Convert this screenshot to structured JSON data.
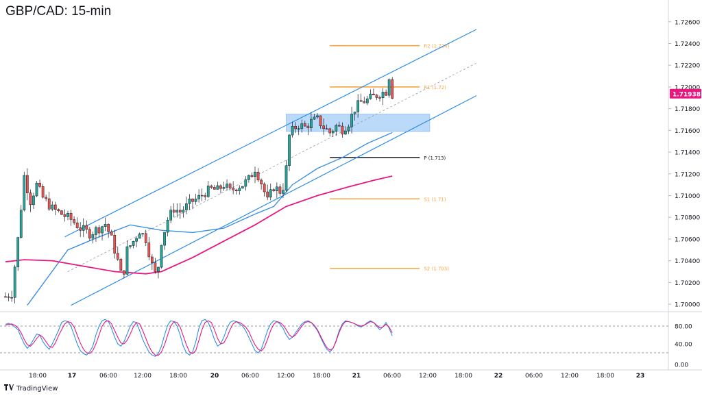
{
  "title": "GBP/CAD: 15-min",
  "footer": {
    "brand": "TradingView",
    "logo_icon": "tradingview-logo-icon"
  },
  "colors": {
    "channel": "#2f8ee6",
    "ma_fast": "#3d8fe0",
    "ma_slow": "#e8177f",
    "pivot_res": "#f7a540",
    "pivot_p": "#131722",
    "candle_up": "#26a69a",
    "candle_down": "#ef5350",
    "zone": "#9ec9f5",
    "price_badge": "#e8177f",
    "stoch_k": "#2f8ee6",
    "stoch_d": "#e8177f"
  },
  "chart_data": [
    {
      "type": "candlestick",
      "symbol": "GBP/CAD",
      "timeframe": "15-min",
      "x_ticks": [
        "18:00",
        "17",
        "06:00",
        "12:00",
        "18:00",
        "20",
        "06:00",
        "12:00",
        "18:00",
        "21",
        "06:00",
        "12:00",
        "18:00",
        "22",
        "06:00",
        "12:00",
        "18:00",
        "23"
      ],
      "y_ticks": [
        "1.72600",
        "1.72400",
        "1.72200",
        "1.72000",
        "1.71800",
        "1.71600",
        "1.71400",
        "1.71200",
        "1.71000",
        "1.70800",
        "1.70600",
        "1.70400",
        "1.70200",
        "1.70000"
      ],
      "ylim": [
        1.6995,
        1.7275
      ],
      "last_price": "1.71938",
      "price_path": [
        [
          0,
          1.7007
        ],
        [
          2,
          1.701
        ],
        [
          4,
          1.706
        ],
        [
          6,
          1.7118
        ],
        [
          8,
          1.7095
        ],
        [
          10,
          1.711
        ],
        [
          12,
          1.7098
        ],
        [
          15,
          1.7088
        ],
        [
          18,
          1.7083
        ],
        [
          21,
          1.7078
        ],
        [
          24,
          1.707
        ],
        [
          27,
          1.7065
        ],
        [
          30,
          1.707
        ],
        [
          32,
          1.7074
        ],
        [
          34,
          1.706
        ],
        [
          36,
          1.704
        ],
        [
          37.5,
          1.7022
        ],
        [
          39,
          1.705
        ],
        [
          41,
          1.7058
        ],
        [
          43,
          1.7068
        ],
        [
          45,
          1.706
        ],
        [
          47,
          1.7036
        ],
        [
          48.5,
          1.7024
        ],
        [
          50,
          1.7058
        ],
        [
          52,
          1.7078
        ],
        [
          54,
          1.7088
        ],
        [
          56,
          1.7085
        ],
        [
          58,
          1.709
        ],
        [
          60,
          1.7095
        ],
        [
          62,
          1.7098
        ],
        [
          64,
          1.7103
        ],
        [
          66,
          1.7106
        ],
        [
          68,
          1.7105
        ],
        [
          70,
          1.711
        ],
        [
          72,
          1.7104
        ],
        [
          74,
          1.7108
        ],
        [
          76,
          1.711
        ],
        [
          78,
          1.7115
        ],
        [
          80,
          1.7125
        ],
        [
          82,
          1.7112
        ],
        [
          84,
          1.7095
        ],
        [
          86,
          1.7108
        ],
        [
          88,
          1.7104
        ],
        [
          89.5,
          1.711
        ],
        [
          91,
          1.7155
        ],
        [
          92.5,
          1.7162
        ],
        [
          94,
          1.7165
        ],
        [
          96,
          1.7163
        ],
        [
          98,
          1.7168
        ],
        [
          100,
          1.717
        ],
        [
          102,
          1.7163
        ],
        [
          104,
          1.7158
        ],
        [
          106,
          1.7164
        ],
        [
          108,
          1.7161
        ],
        [
          110,
          1.7167
        ],
        [
          112,
          1.718
        ],
        [
          114,
          1.7186
        ],
        [
          116,
          1.7188
        ],
        [
          118,
          1.7191
        ],
        [
          120,
          1.7194
        ],
        [
          122,
          1.7196
        ],
        [
          123,
          1.721
        ],
        [
          124,
          1.7193
        ]
      ]
    },
    {
      "type": "line",
      "name": "",
      "series": [
        {
          "name": "",
          "role": "ma_fast",
          "points": [
            [
              7,
              1.6999
            ],
            [
              20,
              1.705
            ],
            [
              30,
              1.7062
            ],
            [
              40,
              1.7073
            ],
            [
              50,
              1.7068
            ],
            [
              60,
              1.7066
            ],
            [
              70,
              1.707
            ],
            [
              80,
              1.7083
            ],
            [
              86,
              1.709
            ],
            [
              92,
              1.711
            ],
            [
              100,
              1.7125
            ],
            [
              108,
              1.7135
            ],
            [
              116,
              1.7148
            ],
            [
              124,
              1.7158
            ]
          ]
        },
        {
          "name": "",
          "role": "ma_slow",
          "points": [
            [
              0,
              1.7039
            ],
            [
              6,
              1.7041
            ],
            [
              15,
              1.704
            ],
            [
              25,
              1.7035
            ],
            [
              35,
              1.703
            ],
            [
              45,
              1.7028
            ],
            [
              50,
              1.703
            ],
            [
              60,
              1.7043
            ],
            [
              70,
              1.7058
            ],
            [
              80,
              1.7073
            ],
            [
              90,
              1.709
            ],
            [
              100,
              1.71
            ],
            [
              110,
              1.7108
            ],
            [
              118,
              1.7114
            ],
            [
              124,
              1.7118
            ]
          ]
        }
      ]
    },
    {
      "type": "annotation",
      "channel_lines": [
        {
          "role": "channel_upper",
          "points": [
            [
              19,
              1.7062
            ],
            [
              151,
              1.7253
            ]
          ]
        },
        {
          "role": "channel_lower",
          "points": [
            [
              21,
              1.6999
            ],
            [
              151,
              1.7192
            ]
          ]
        },
        {
          "role": "channel_mid_dashed",
          "points": [
            [
              20,
              1.703
            ],
            [
              151,
              1.7222
            ]
          ]
        }
      ],
      "pivot_levels": [
        {
          "label": "R2 (1.724)",
          "value": 1.7238,
          "role": "pivot_res",
          "x_start": 104,
          "x_end": 146
        },
        {
          "label": "R1 (1.72)",
          "value": 1.72,
          "role": "pivot_res",
          "x_start": 104,
          "x_end": 146
        },
        {
          "label": "P (1.713)",
          "value": 1.7135,
          "role": "pivot_p",
          "x_start": 104,
          "x_end": 146
        },
        {
          "label": "S1 (1.71)",
          "value": 1.7097,
          "role": "pivot_res",
          "x_start": 104,
          "x_end": 146
        },
        {
          "label": "S2 (1.703)",
          "value": 1.7033,
          "role": "pivot_res",
          "x_start": 104,
          "x_end": 146
        }
      ],
      "zone": {
        "x_start": 90,
        "x_end": 136,
        "y_bottom": 1.7159,
        "y_top": 1.7175
      }
    },
    {
      "type": "line",
      "name": "",
      "indicator": "stochastic",
      "y_ticks": [
        "80.00",
        "40.00",
        "0.00"
      ],
      "levels": [
        80,
        20
      ],
      "ylim": [
        0,
        100
      ],
      "series": [
        {
          "name": "",
          "role": "stoch_k",
          "values": [
            84,
            86,
            83,
            78,
            72,
            55,
            40,
            30,
            38,
            50,
            62,
            60,
            45,
            35,
            28,
            40,
            55,
            70,
            88,
            92,
            90,
            80,
            60,
            40,
            25,
            18,
            15,
            22,
            35,
            60,
            80,
            92,
            95,
            90,
            75,
            55,
            40,
            35,
            45,
            62,
            80,
            90,
            88,
            70,
            50,
            35,
            22,
            15,
            12,
            18,
            35,
            60,
            82,
            92,
            90,
            80,
            60,
            35,
            20,
            15,
            22,
            45,
            75,
            92,
            95,
            88,
            70,
            50,
            35,
            40,
            55,
            75,
            88,
            92,
            90,
            85,
            80,
            70,
            55,
            40,
            25,
            20,
            28,
            48,
            70,
            85,
            92,
            90,
            85,
            75,
            60,
            50,
            55,
            65,
            75,
            85,
            90,
            92,
            88,
            80,
            70,
            55,
            40,
            28,
            22,
            30,
            48,
            70,
            85,
            92,
            90,
            88,
            85,
            80,
            78,
            82,
            88,
            92,
            88,
            80,
            72,
            78,
            88,
            75,
            58
          ]
        },
        {
          "name": "",
          "role": "stoch_d",
          "values": [
            82,
            84,
            85,
            82,
            76,
            65,
            50,
            38,
            35,
            42,
            52,
            60,
            55,
            45,
            35,
            32,
            42,
            58,
            72,
            85,
            90,
            88,
            78,
            60,
            42,
            28,
            20,
            18,
            25,
            40,
            60,
            80,
            90,
            92,
            85,
            70,
            55,
            42,
            40,
            48,
            62,
            78,
            88,
            85,
            70,
            52,
            35,
            22,
            15,
            14,
            22,
            38,
            60,
            80,
            90,
            88,
            78,
            58,
            38,
            22,
            18,
            25,
            48,
            72,
            88,
            92,
            88,
            72,
            52,
            40,
            42,
            55,
            72,
            85,
            90,
            88,
            84,
            78,
            68,
            52,
            38,
            28,
            24,
            32,
            50,
            70,
            84,
            90,
            88,
            82,
            72,
            60,
            55,
            60,
            70,
            80,
            88,
            90,
            88,
            82,
            72,
            58,
            44,
            32,
            26,
            30,
            46,
            66,
            82,
            90,
            90,
            88,
            85,
            82,
            80,
            82,
            86,
            90,
            88,
            82,
            76,
            78,
            84,
            78,
            65
          ]
        }
      ]
    }
  ]
}
